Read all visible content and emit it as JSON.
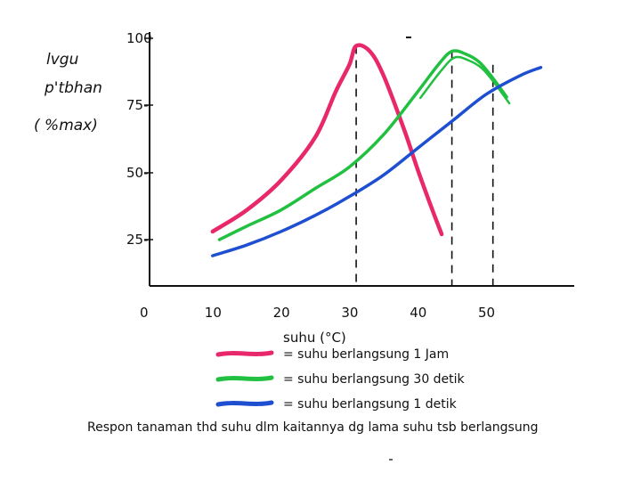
{
  "chart_data": {
    "type": "line",
    "ylabel_lines": [
      "lvgu",
      "p'tbhan",
      "( %max)"
    ],
    "xlabel": "suhu (°C)",
    "x_ticks": [
      "0",
      "10",
      "20",
      "30",
      "40",
      "50"
    ],
    "y_ticks": [
      "25-",
      "50-",
      "75-",
      "100"
    ],
    "xlim": [
      0,
      60
    ],
    "ylim": [
      0,
      100
    ],
    "series": [
      {
        "name": "= suhu berlangsung 1 Jam",
        "color": "#e8286a",
        "x": [
          10,
          15,
          20,
          25,
          28,
          30,
          31,
          33,
          35,
          38,
          40,
          42,
          43.5
        ],
        "y": [
          28,
          36,
          47,
          63,
          80,
          90,
          97,
          95,
          86,
          66,
          51,
          37,
          27
        ]
      },
      {
        "name": "= suhu berlangsung 30 detik",
        "color": "#22c040",
        "x": [
          11,
          15,
          20,
          25,
          30,
          35,
          40,
          43,
          45,
          47,
          49,
          51,
          53
        ],
        "y": [
          25,
          30,
          36,
          44,
          52,
          64,
          80,
          90,
          95,
          94,
          91,
          85,
          78
        ]
      },
      {
        "name": "= suhu berlangsung 1 detik",
        "color": "#1e4fd0",
        "x": [
          10,
          15,
          20,
          25,
          30,
          35,
          40,
          45,
          50,
          55,
          58
        ],
        "y": [
          19,
          23,
          28,
          34,
          41,
          49,
          59,
          69,
          79,
          86,
          89
        ]
      }
    ],
    "dashed_refs": [
      {
        "x": 31,
        "y": 97
      },
      {
        "x": 45,
        "y": 95
      },
      {
        "x": 51,
        "y": 90
      }
    ],
    "caption": "Respon tanaman thd suhu dlm kaitannya dg lama suhu tsb berlangsung"
  }
}
